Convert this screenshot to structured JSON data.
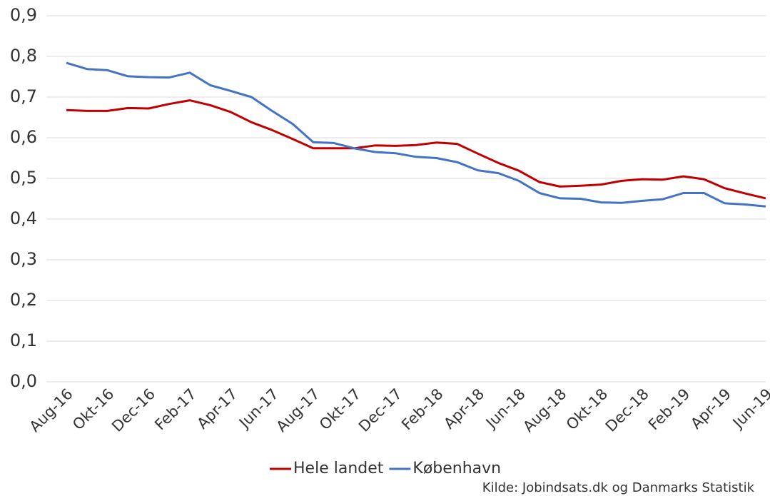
{
  "chart_data": {
    "type": "line",
    "source": "Kilde:  Jobindsats.dk og Danmarks Statistik",
    "categories": [
      "Aug-16",
      null,
      "Okt-16",
      null,
      "Dec-16",
      null,
      "Feb-17",
      null,
      "Apr-17",
      null,
      "Jun-17",
      null,
      "Aug-17",
      null,
      "Okt-17",
      null,
      "Dec-17",
      null,
      "Feb-18",
      null,
      "Apr-18",
      null,
      "Jun-18",
      null,
      "Aug-18",
      null,
      "Okt-18",
      null,
      "Dec-18",
      null,
      "Feb-19",
      null,
      "Apr-19",
      null,
      "Jun-19"
    ],
    "series": [
      {
        "name": "Hele landet",
        "color": "#c00000",
        "values": [
          0.668,
          0.666,
          0.666,
          0.673,
          0.672,
          0.683,
          0.692,
          0.68,
          0.663,
          0.638,
          0.619,
          0.597,
          0.574,
          0.574,
          0.574,
          0.581,
          0.58,
          0.582,
          0.588,
          0.585,
          0.561,
          0.538,
          0.519,
          0.491,
          0.48,
          0.482,
          0.485,
          0.494,
          0.498,
          0.497,
          0.505,
          0.498,
          0.476,
          0.463,
          0.451
        ]
      },
      {
        "name": "København",
        "color": "#4472c4",
        "values": [
          0.784,
          0.769,
          0.766,
          0.751,
          0.749,
          0.748,
          0.76,
          0.729,
          0.715,
          0.7,
          0.666,
          0.634,
          0.589,
          0.587,
          0.574,
          0.565,
          0.562,
          0.553,
          0.55,
          0.54,
          0.52,
          0.513,
          0.494,
          0.464,
          0.451,
          0.45,
          0.441,
          0.44,
          0.445,
          0.449,
          0.464,
          0.464,
          0.439,
          0.436,
          0.431
        ]
      }
    ],
    "ylim": [
      0,
      0.9
    ],
    "yticks": [
      {
        "value": 0,
        "label": "0,0"
      },
      {
        "value": 0.1,
        "label": "0,1"
      },
      {
        "value": 0.2,
        "label": "0,2"
      },
      {
        "value": 0.3,
        "label": "0,3"
      },
      {
        "value": 0.4,
        "label": "0,4"
      },
      {
        "value": 0.5,
        "label": "0,5"
      },
      {
        "value": 0.6,
        "label": "0,6"
      },
      {
        "value": 0.7,
        "label": "0,7"
      },
      {
        "value": 0.8,
        "label": "0,8"
      },
      {
        "value": 0.9,
        "label": "0,9"
      }
    ],
    "grid": true,
    "legend": "bottom"
  }
}
